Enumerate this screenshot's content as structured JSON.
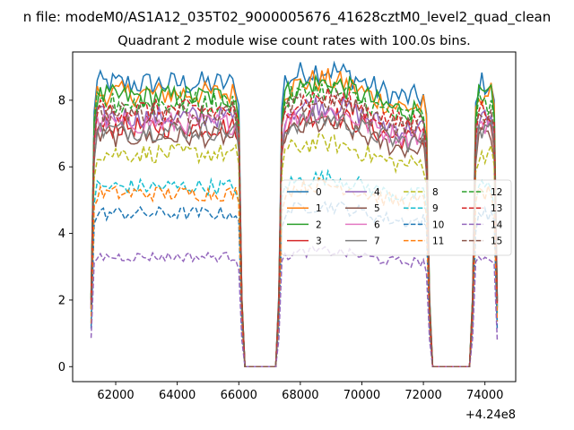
{
  "figure": {
    "suptitle": "n file: modeM0/AS1A12_035T02_9000005676_41628cztM0_level2_quad_clean",
    "title": "Quadrant 2 module wise count rates with 100.0s bins.",
    "offset_label": "+4.24e8"
  },
  "chart_data": {
    "type": "line",
    "title": "Quadrant 2 module wise count rates with 100.0s bins.",
    "xlabel": "",
    "ylabel": "",
    "x_offset": 424000000,
    "xlim": [
      60600,
      75000
    ],
    "ylim": [
      -0.45,
      9.45
    ],
    "x_ticks": [
      62000,
      64000,
      66000,
      68000,
      70000,
      72000,
      74000
    ],
    "y_ticks": [
      0,
      2,
      4,
      6,
      8
    ],
    "x_tick_labels": [
      "62000",
      "64000",
      "66000",
      "68000",
      "70000",
      "72000",
      "74000"
    ],
    "y_tick_labels": [
      "0",
      "2",
      "4",
      "6",
      "8"
    ],
    "grid": false,
    "legend": {
      "placement": "center-right",
      "columns": 4
    },
    "segments": [
      [
        61200,
        66100
      ],
      [
        67300,
        72200
      ],
      [
        73600,
        74400
      ]
    ],
    "series": [
      {
        "name": "0",
        "level": 8.5,
        "color": "#1f77b4",
        "dash": "solid"
      },
      {
        "name": "1",
        "level": 8.2,
        "color": "#ff7f0e",
        "dash": "solid"
      },
      {
        "name": "2",
        "level": 8.1,
        "color": "#2ca02c",
        "dash": "solid"
      },
      {
        "name": "3",
        "level": 7.2,
        "color": "#d62728",
        "dash": "solid"
      },
      {
        "name": "4",
        "level": 7.5,
        "color": "#9467bd",
        "dash": "solid"
      },
      {
        "name": "5",
        "level": 6.9,
        "color": "#8c564b",
        "dash": "solid"
      },
      {
        "name": "6",
        "level": 7.3,
        "color": "#e377c2",
        "dash": "solid"
      },
      {
        "name": "7",
        "level": 7.1,
        "color": "#7f7f7f",
        "dash": "solid"
      },
      {
        "name": "8",
        "level": 6.4,
        "color": "#bcbd22",
        "dash": "dashed"
      },
      {
        "name": "9",
        "level": 5.4,
        "color": "#17becf",
        "dash": "dashed"
      },
      {
        "name": "10",
        "level": 4.6,
        "color": "#1f77b4",
        "dash": "dashed"
      },
      {
        "name": "11",
        "level": 5.2,
        "color": "#ff7f0e",
        "dash": "dashed"
      },
      {
        "name": "12",
        "level": 7.9,
        "color": "#2ca02c",
        "dash": "dashed"
      },
      {
        "name": "13",
        "level": 7.7,
        "color": "#d62728",
        "dash": "dashed"
      },
      {
        "name": "14",
        "level": 3.3,
        "color": "#9467bd",
        "dash": "dashed"
      },
      {
        "name": "15",
        "level": 7.6,
        "color": "#8c564b",
        "dash": "dashed"
      }
    ]
  }
}
